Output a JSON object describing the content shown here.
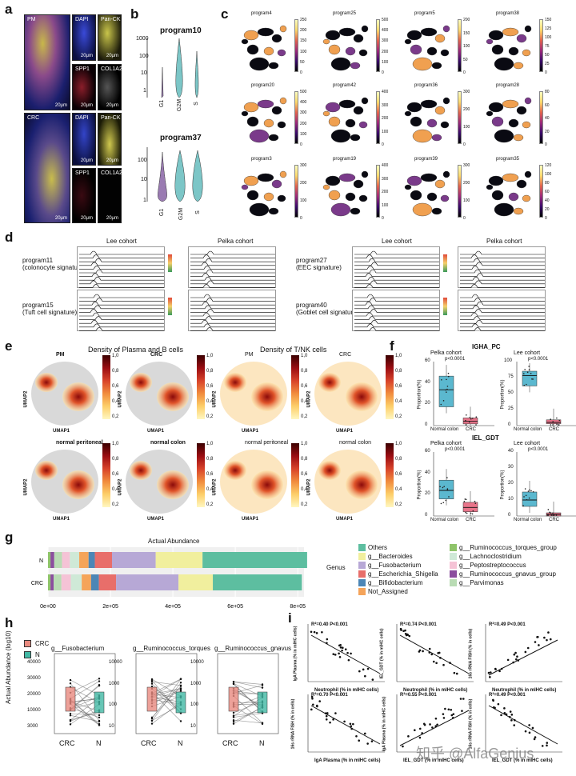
{
  "panel_labels": {
    "a": "a",
    "b": "b",
    "c": "c",
    "d": "d",
    "e": "e",
    "f": "f",
    "g": "g",
    "h": "h",
    "i": "i"
  },
  "panel_a": {
    "pm_label": "PM",
    "crc_label": "CRC",
    "channels": [
      "DAPI",
      "Pan-CK",
      "SPP1",
      "COL1A2"
    ],
    "scale": "20μm"
  },
  "panel_b": {
    "programs": [
      {
        "title": "program10",
        "yticks": [
          "1000",
          "100",
          "10",
          "1"
        ],
        "categories": [
          "G1",
          "G2M",
          "S"
        ]
      },
      {
        "title": "program37",
        "yticks": [
          "100",
          "10",
          "1"
        ],
        "categories": [
          "G1",
          "G2M",
          "S"
        ]
      }
    ]
  },
  "panel_c": {
    "maps": [
      {
        "name": "program4",
        "ticks": [
          "250",
          "200",
          "150",
          "100",
          "50",
          "0"
        ]
      },
      {
        "name": "program25",
        "ticks": [
          "500",
          "400",
          "300",
          "200",
          "100",
          "0"
        ]
      },
      {
        "name": "program5",
        "ticks": [
          "200",
          "150",
          "100",
          "50",
          "0"
        ]
      },
      {
        "name": "program38",
        "ticks": [
          "150",
          "125",
          "100",
          "75",
          "50",
          "25",
          "0"
        ]
      },
      {
        "name": "program20",
        "ticks": [
          "500",
          "400",
          "300",
          "200",
          "100",
          "0"
        ]
      },
      {
        "name": "program42",
        "ticks": [
          "400",
          "300",
          "200",
          "100",
          "0"
        ]
      },
      {
        "name": "program36",
        "ticks": [
          "300",
          "200",
          "100",
          "0"
        ]
      },
      {
        "name": "program28",
        "ticks": [
          "80",
          "60",
          "40",
          "20",
          "0"
        ]
      },
      {
        "name": "program3",
        "ticks": [
          "300",
          "200",
          "100",
          "0"
        ]
      },
      {
        "name": "program19",
        "ticks": [
          "400",
          "300",
          "200",
          "100",
          "0"
        ]
      },
      {
        "name": "program39",
        "ticks": [
          "300",
          "200",
          "100",
          "0"
        ]
      },
      {
        "name": "program35",
        "ticks": [
          "120",
          "100",
          "80",
          "60",
          "40",
          "20",
          "0"
        ]
      }
    ]
  },
  "panel_d": {
    "cohorts": [
      "Lee cohort",
      "Pelka cohort",
      "Lee cohort",
      "Pelka cohort"
    ],
    "programs": [
      {
        "name": "program11",
        "sig": "(colonocyte signature)"
      },
      {
        "name": "program15",
        "sig": "(Tuft cell signature)"
      },
      {
        "name": "program27",
        "sig": "(EEC signature)"
      },
      {
        "name": "program40",
        "sig": "(Goblet cell signature)"
      }
    ]
  },
  "panel_e": {
    "title_left": "Density of Plasma and B cells",
    "title_right": "Density of T/NK cells",
    "maps": [
      "PM",
      "CRC",
      "PM",
      "CRC",
      "normal peritoneal",
      "normal colon",
      "normal peritoneal",
      "normal colon"
    ],
    "xlabel": "UMAP1",
    "ylabel": "UMAP2",
    "scale_ticks": [
      "1,0",
      "0,8",
      "0,6",
      "0,4",
      "0,2"
    ]
  },
  "panel_f": {
    "title_top": "IGHA_PC",
    "title_bottom": "IEL_GDT",
    "ylabel": "Proportion(%)",
    "plots": [
      {
        "cohort": "Pelka cohort",
        "p": "p<0.0001",
        "categories": [
          "Normal colon",
          "CRC"
        ],
        "yticks": [
          "0",
          "20",
          "40",
          "60"
        ],
        "medians": [
          42,
          5
        ],
        "q1": [
          22,
          2
        ],
        "q3": [
          58,
          9
        ],
        "ylim": [
          0,
          75
        ]
      },
      {
        "cohort": "Lee cohort",
        "p": "p<0.0001",
        "categories": [
          "Normal colon",
          "CRC"
        ],
        "yticks": [
          "0",
          "25",
          "50",
          "75",
          "100"
        ],
        "medians": [
          78,
          5
        ],
        "q1": [
          62,
          3
        ],
        "q3": [
          85,
          9
        ],
        "ylim": [
          0,
          100
        ]
      },
      {
        "cohort": "Pelka cohort",
        "p": "p<0.0001",
        "categories": [
          "Normal colon",
          "CRC"
        ],
        "yticks": [
          "0",
          "20",
          "40",
          "60"
        ],
        "medians": [
          30,
          10
        ],
        "q1": [
          20,
          5
        ],
        "q3": [
          42,
          16
        ],
        "ylim": [
          0,
          75
        ]
      },
      {
        "cohort": "Lee cohort",
        "p": "p<0.0001",
        "categories": [
          "Normal colon",
          "CRC"
        ],
        "yticks": [
          "0",
          "10",
          "20",
          "30",
          "40"
        ],
        "medians": [
          10,
          1
        ],
        "q1": [
          6,
          0
        ],
        "q3": [
          15,
          2
        ],
        "ylim": [
          0,
          40
        ]
      }
    ]
  },
  "chart_data": [
    {
      "type": "bar",
      "title": "Actual Abundance",
      "categories": [
        "N",
        "CRC"
      ],
      "xticks": [
        "0e+00",
        "2e+05",
        "4e+05",
        "6e+05",
        "8e+05"
      ],
      "xlim": [
        0,
        820000
      ],
      "legend_title": "Genus",
      "series": [
        {
          "name": "g__Ruminococcus_torques_group",
          "color": "#8fc46a",
          "values": [
            8000,
            8000
          ]
        },
        {
          "name": "g__Ruminococcus_gnavus_group",
          "color": "#8b4e9e",
          "values": [
            12000,
            10000
          ]
        },
        {
          "name": "g__Parvimonas",
          "color": "#b9dcb4",
          "values": [
            25000,
            25000
          ]
        },
        {
          "name": "g__Peptostreptococcus",
          "color": "#f5c3d6",
          "values": [
            25000,
            30000
          ]
        },
        {
          "name": "g__Lachnoclostridium",
          "color": "#cfe9d7",
          "values": [
            30000,
            35000
          ]
        },
        {
          "name": "Not_Assigned",
          "color": "#f5a45a",
          "values": [
            30000,
            30000
          ]
        },
        {
          "name": "g__Bifidobacterium",
          "color": "#4c86b6",
          "values": [
            20000,
            25000
          ]
        },
        {
          "name": "g__Escherichia_Shigella",
          "color": "#e86e6a",
          "values": [
            55000,
            55000
          ]
        },
        {
          "name": "g__Fusobacterium",
          "color": "#b7a8d6",
          "values": [
            140000,
            200000
          ]
        },
        {
          "name": "g__Bacteroides",
          "color": "#f1ef9e",
          "values": [
            150000,
            110000
          ]
        },
        {
          "name": "Others",
          "color": "#5dbea0",
          "values": [
            335000,
            285000
          ]
        }
      ],
      "legend_col1": [
        "Others",
        "g__Bacteroides",
        "g__Fusobacterium",
        "g__Escherichia_Shigella",
        "g__Bifidobacterium",
        "Not_Assigned"
      ],
      "legend_col2": [
        "g__Ruminococcus_torques_group",
        "g__Lachnoclostridium",
        "g__Peptostreptococcus",
        "g__Ruminococcus_gnavus_group",
        "g__Parvimonas"
      ]
    },
    {
      "type": "box",
      "ylabel": "Actual Abundance (log10)",
      "legend": [
        {
          "name": "CRC",
          "color": "#e88a7f"
        },
        {
          "name": "N",
          "color": "#41b8a4"
        }
      ],
      "plots": [
        {
          "title": "g__Fusobacterium",
          "p": "P=0.0047",
          "yticks": [
            "3000",
            "10000",
            "20000",
            "30000",
            "40000"
          ],
          "categories": [
            "CRC",
            "N"
          ]
        },
        {
          "title": "g__Ruminococcus_torques",
          "p": "P=0.025",
          "yticks": [
            "10",
            "100",
            "1000",
            "10000"
          ],
          "categories": [
            "CRC",
            "N"
          ]
        },
        {
          "title": "g__Ruminococcus_gnavus",
          "p": "P=0.0003",
          "yticks": [
            "10",
            "100",
            "1000",
            "10000"
          ],
          "categories": [
            "CRC",
            "N"
          ]
        }
      ]
    },
    {
      "type": "scatter",
      "plots": [
        {
          "stat": "R²=0.40 P<0.001",
          "xlabel": "Neutrophil (% in mIHC cells)",
          "ylabel": "IgA Plasma (% in mIHC cells)",
          "slope": -1
        },
        {
          "stat": "R²=0.74 P<0.001",
          "xlabel": "Neutrophil (% in mIHC cells)",
          "ylabel": "IEL_GDT (% in mIHC cells)",
          "slope": -1
        },
        {
          "stat": "R²=0.49 P<0.001",
          "xlabel": "Neutrophil (% in mIHC cells)",
          "ylabel": "16s rRNA FISH (% in cells)",
          "slope": 1
        },
        {
          "stat": "R²=0.70 P<0.001",
          "xlabel": "IgA Plasma (% in mIHC cells)",
          "ylabel": "16s rRNA FISH (% in cells)",
          "slope": -1
        },
        {
          "stat": "R²=0.55 P<0.001",
          "xlabel": "IEL_GDT (% in mIHC cells)",
          "ylabel": "IgA Plasma (% in mIHC cells)",
          "slope": 1
        },
        {
          "stat": "R²=0.49 P<0.001",
          "xlabel": "IEL_GDT (% in mIHC cells)",
          "ylabel": "16s rRNA FISH (% in cells)",
          "slope": -1
        }
      ]
    }
  ],
  "watermark": "知乎 @AlfaGenius"
}
